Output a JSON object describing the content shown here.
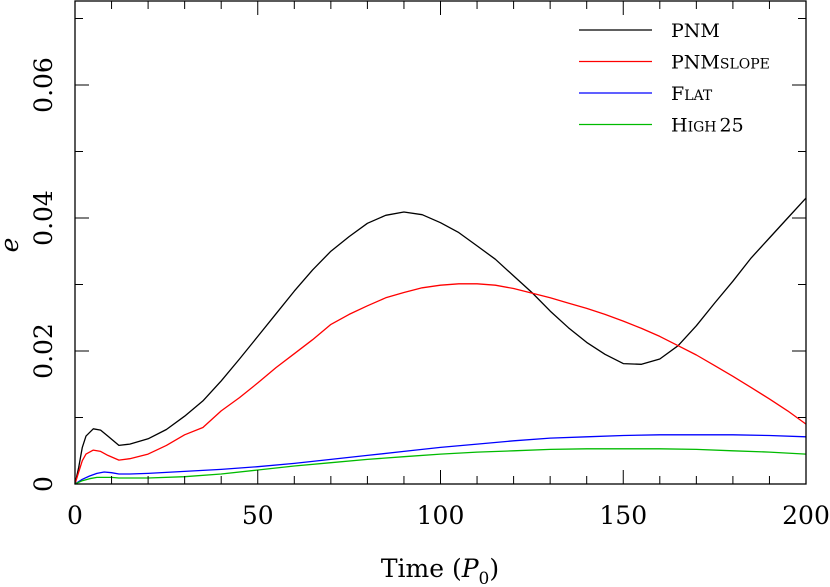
{
  "chart_data": {
    "type": "line",
    "title": "",
    "xlabel": "Time (P0)",
    "xlabel_main": "Time",
    "xlabel_symbol": "P",
    "xlabel_subscript": "0",
    "ylabel": "e",
    "xlim": [
      0,
      200
    ],
    "ylim": [
      0,
      0.073
    ],
    "x_ticks": [
      0,
      50,
      100,
      150,
      200
    ],
    "x_tick_labels": [
      "0",
      "50",
      "100",
      "150",
      "200"
    ],
    "y_ticks": [
      0,
      0.02,
      0.04,
      0.06
    ],
    "y_tick_labels": [
      "0",
      "0.02",
      "0.04",
      "0.06"
    ],
    "x_minor_step": 10,
    "y_minor_step": 0.01,
    "grid": false,
    "legend_position": "upper right",
    "series": [
      {
        "name": "PNM",
        "label_main": "PNM",
        "label_small": "",
        "color": "#000000",
        "x": [
          0,
          1,
          2,
          3,
          5,
          7,
          9,
          12,
          15,
          20,
          25,
          30,
          35,
          40,
          45,
          50,
          55,
          60,
          65,
          70,
          75,
          80,
          85,
          90,
          95,
          100,
          105,
          110,
          115,
          120,
          125,
          130,
          135,
          140,
          145,
          150,
          155,
          160,
          165,
          170,
          175,
          180,
          185,
          190,
          195,
          200
        ],
        "y": [
          0.0,
          0.0025,
          0.0055,
          0.0072,
          0.0083,
          0.0081,
          0.0072,
          0.0058,
          0.006,
          0.0068,
          0.0082,
          0.0102,
          0.0125,
          0.0155,
          0.0188,
          0.0222,
          0.0256,
          0.029,
          0.0322,
          0.035,
          0.0372,
          0.0392,
          0.0404,
          0.0409,
          0.0405,
          0.0393,
          0.0378,
          0.0358,
          0.0338,
          0.0313,
          0.0288,
          0.026,
          0.0235,
          0.0213,
          0.0195,
          0.0181,
          0.018,
          0.0188,
          0.0208,
          0.0238,
          0.0272,
          0.0305,
          0.034,
          0.037,
          0.04,
          0.043
        ]
      },
      {
        "name": "PNMslope",
        "label_main": "PNM",
        "label_small": "SLOPE",
        "color": "#ff0000",
        "x": [
          0,
          1,
          2,
          3,
          5,
          7,
          9,
          12,
          15,
          20,
          25,
          30,
          35,
          40,
          45,
          50,
          55,
          60,
          65,
          70,
          75,
          80,
          85,
          90,
          95,
          100,
          105,
          110,
          115,
          120,
          125,
          130,
          135,
          140,
          145,
          150,
          155,
          160,
          165,
          170,
          175,
          180,
          185,
          190,
          195,
          200
        ],
        "y": [
          0.0,
          0.0018,
          0.0035,
          0.0045,
          0.0051,
          0.0049,
          0.0043,
          0.0036,
          0.0038,
          0.0045,
          0.0058,
          0.0074,
          0.0085,
          0.011,
          0.013,
          0.0152,
          0.0175,
          0.0196,
          0.0217,
          0.024,
          0.0255,
          0.0268,
          0.028,
          0.0288,
          0.0295,
          0.0299,
          0.0301,
          0.0301,
          0.0299,
          0.0294,
          0.0287,
          0.028,
          0.0272,
          0.0264,
          0.0255,
          0.0245,
          0.0234,
          0.0222,
          0.0208,
          0.0194,
          0.0178,
          0.0162,
          0.0145,
          0.0128,
          0.011,
          0.009
        ]
      },
      {
        "name": "Flat",
        "label_main": "F",
        "label_small": "LAT",
        "color": "#0000ff",
        "x": [
          0,
          2,
          4,
          6,
          8,
          10,
          12,
          15,
          20,
          30,
          40,
          50,
          60,
          70,
          80,
          90,
          100,
          110,
          120,
          130,
          140,
          150,
          160,
          170,
          180,
          190,
          200
        ],
        "y": [
          0.0,
          0.0007,
          0.0012,
          0.0016,
          0.0018,
          0.0017,
          0.0015,
          0.0015,
          0.0016,
          0.0019,
          0.0022,
          0.0026,
          0.0031,
          0.0037,
          0.0043,
          0.0049,
          0.0055,
          0.006,
          0.0065,
          0.0069,
          0.0071,
          0.0073,
          0.0074,
          0.0074,
          0.0074,
          0.0073,
          0.0071
        ]
      },
      {
        "name": "High25",
        "label_main": "H",
        "label_small": "IGH",
        "label_suffix": "25",
        "color": "#00bb00",
        "x": [
          0,
          2,
          4,
          6,
          8,
          10,
          12,
          15,
          20,
          30,
          40,
          50,
          60,
          70,
          80,
          90,
          100,
          110,
          120,
          130,
          140,
          150,
          160,
          170,
          180,
          190,
          200
        ],
        "y": [
          0.0,
          0.0005,
          0.0008,
          0.001,
          0.001,
          0.001,
          0.0009,
          0.0009,
          0.0009,
          0.0011,
          0.0015,
          0.0021,
          0.0027,
          0.0032,
          0.0037,
          0.0041,
          0.0045,
          0.0048,
          0.005,
          0.0052,
          0.0053,
          0.0053,
          0.0053,
          0.0052,
          0.005,
          0.0048,
          0.0045
        ]
      }
    ]
  },
  "legend": {
    "items": [
      {
        "main": "PNM",
        "small": "",
        "suffix": "",
        "color": "#000000"
      },
      {
        "main": "PNM",
        "small": "SLOPE",
        "suffix": "",
        "color": "#ff0000"
      },
      {
        "main": "F",
        "small": "LAT",
        "suffix": "",
        "color": "#0000ff"
      },
      {
        "main": "H",
        "small": "IGH",
        "suffix": "25",
        "color": "#00bb00"
      }
    ]
  }
}
